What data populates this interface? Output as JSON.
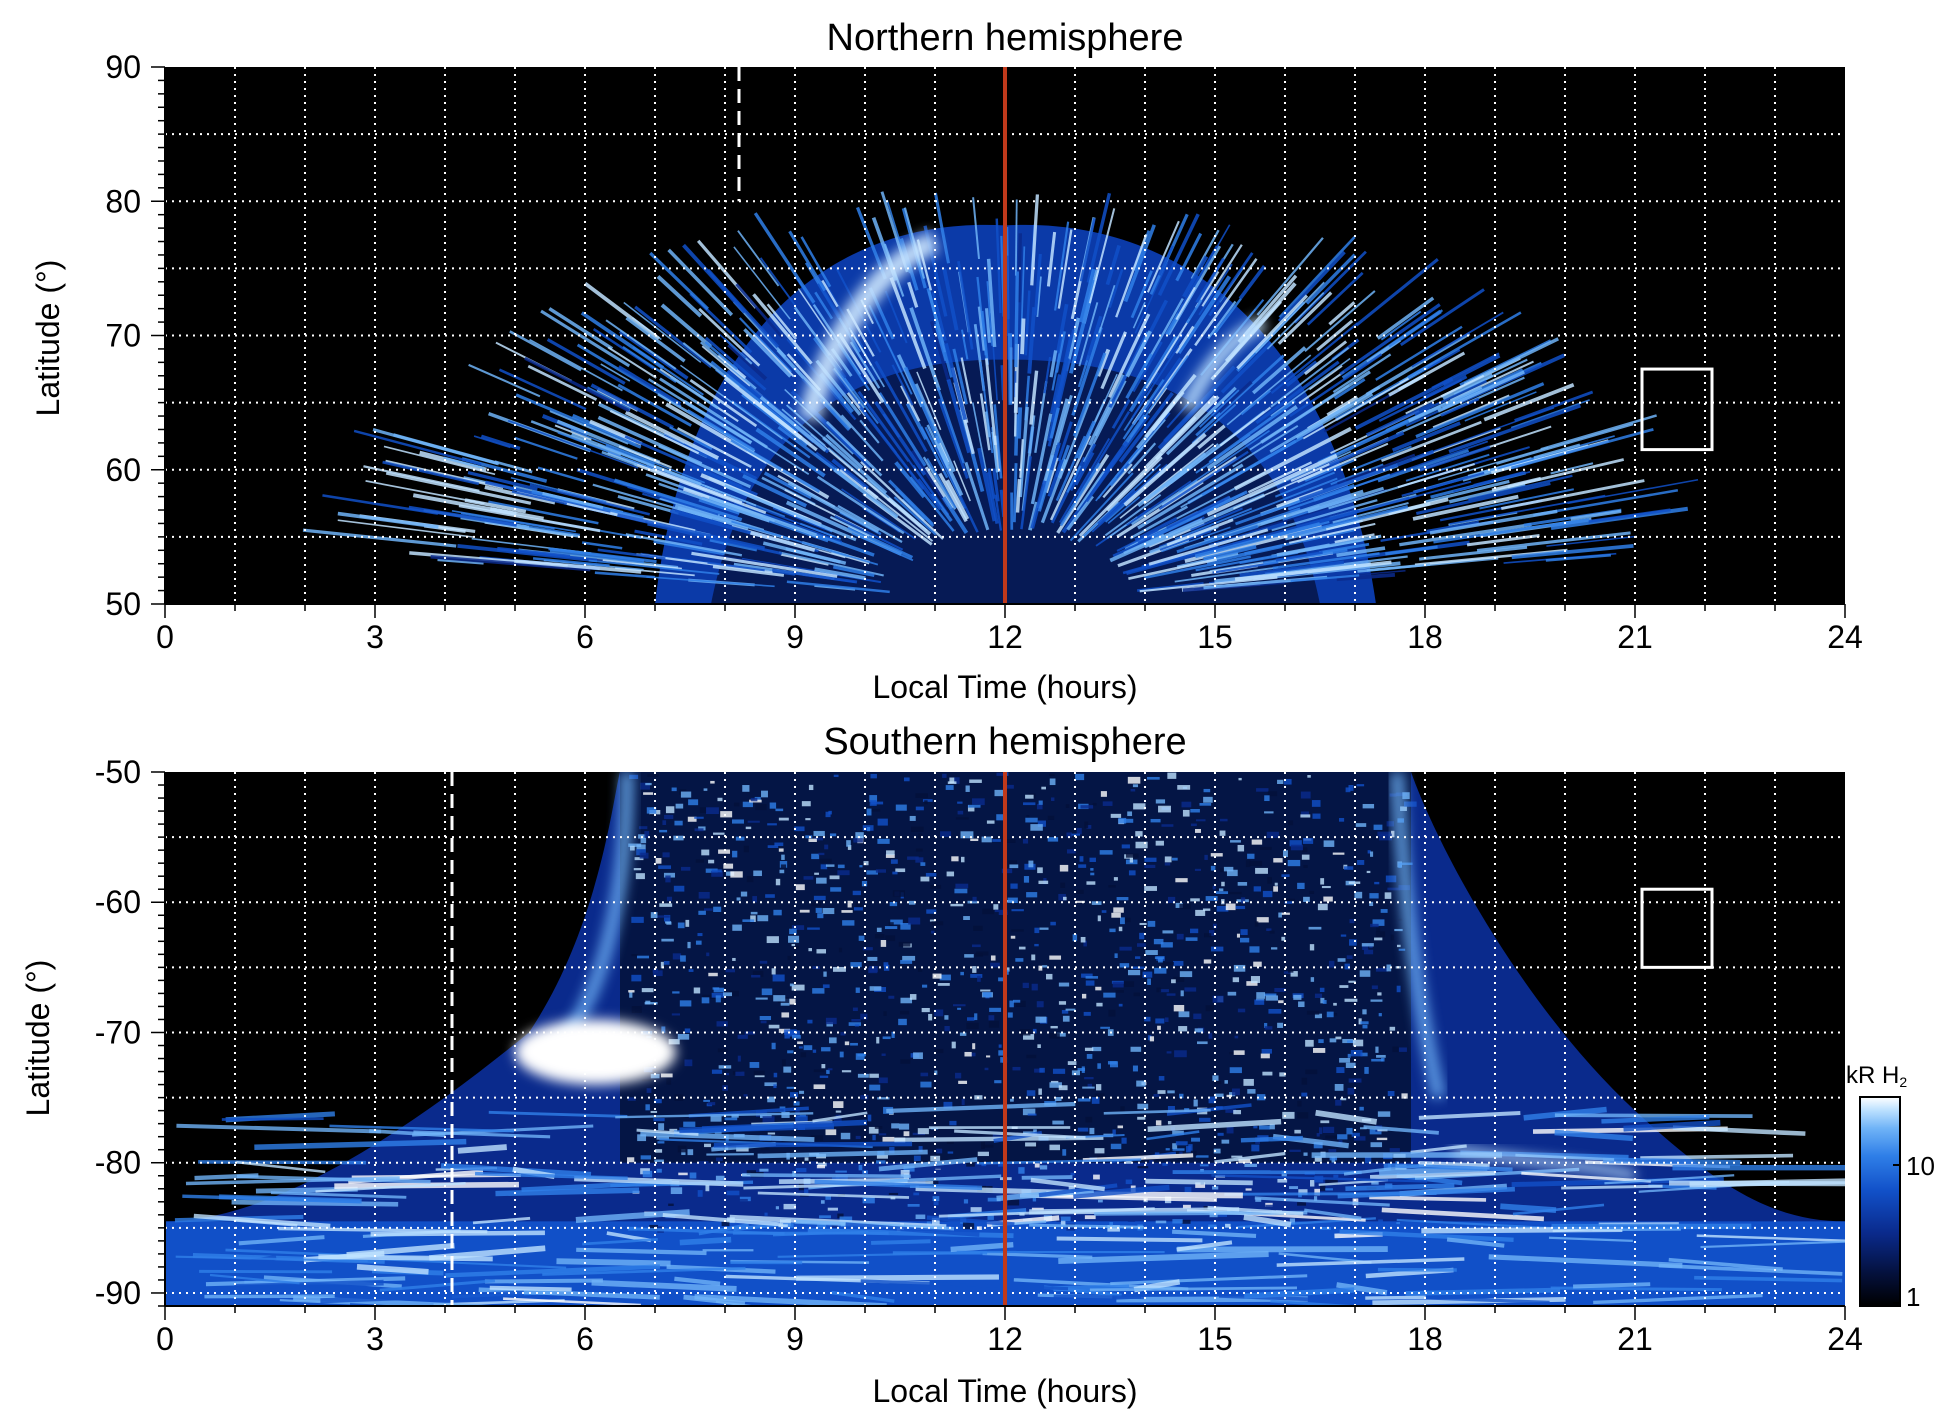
{
  "colors": {
    "background": "#000000",
    "grid": "#ffffff",
    "noon_line": "#c0391b",
    "dashed_line": "#ffffff",
    "box": "#ffffff",
    "scale": [
      "#000000",
      "#04103a",
      "#0a2a8c",
      "#1150c8",
      "#2f7fe8",
      "#6fb3f7",
      "#bfe2ff",
      "#ffffff"
    ]
  },
  "colorbar": {
    "label": "kR H",
    "label_subscript": "2",
    "ticks": [
      "10",
      "1"
    ]
  },
  "chart_data": [
    {
      "type": "heatmap",
      "title": "Northern hemisphere",
      "xlabel": "Local Time (hours)",
      "ylabel": "Latitude (°)",
      "xlim": [
        0,
        24
      ],
      "ylim": [
        50,
        90
      ],
      "x_ticks": [
        "0",
        "3",
        "6",
        "9",
        "12",
        "15",
        "18",
        "21",
        "24"
      ],
      "y_ticks": [
        "50",
        "60",
        "70",
        "80",
        "90"
      ],
      "grid": true,
      "noon_line_x": 12,
      "dashed_line_x": 8.2,
      "box": {
        "x": [
          21.1,
          22.1
        ],
        "y": [
          61.5,
          67.5
        ]
      },
      "illuminated_region": {
        "x_range": [
          7.0,
          17.3
        ],
        "lat_edge_min": 50,
        "lat_edge_max": 79
      },
      "bright_ring": {
        "lat": [
          66,
          77
        ],
        "peak_value_kR": 20
      },
      "colorscale": "log",
      "value_range_kR": [
        1,
        20
      ]
    },
    {
      "type": "heatmap",
      "title": "Southern hemisphere",
      "xlabel": "Local Time (hours)",
      "ylabel": "Latitude (°)",
      "xlim": [
        0,
        24
      ],
      "ylim": [
        -91,
        -50
      ],
      "x_ticks": [
        "0",
        "3",
        "6",
        "9",
        "12",
        "15",
        "18",
        "21",
        "24"
      ],
      "y_ticks": [
        "-50",
        "-60",
        "-70",
        "-80",
        "-90"
      ],
      "grid": true,
      "noon_line_x": 12,
      "dashed_line_x": 4.1,
      "box": {
        "x": [
          21.1,
          22.1
        ],
        "y": [
          -65,
          -59
        ]
      },
      "illuminated_region": {
        "x_range": [
          0,
          24
        ],
        "lat_edge_min": -90,
        "lat_edge_max": -50
      },
      "bright_spot": {
        "x": [
          5.0,
          7.3
        ],
        "lat": [
          -69,
          -74
        ],
        "peak_value_kR": 20
      },
      "colorscale": "log",
      "value_range_kR": [
        1,
        20
      ]
    }
  ]
}
